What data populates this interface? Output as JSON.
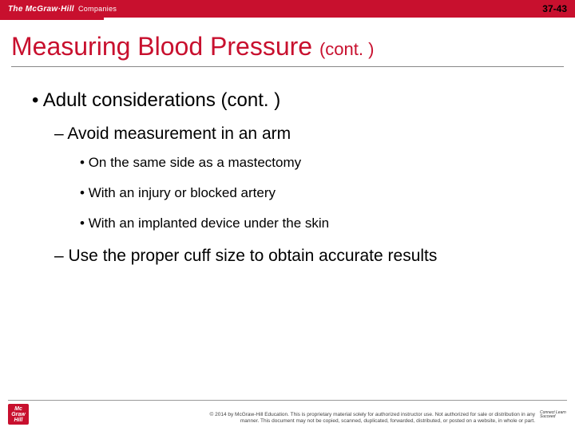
{
  "header": {
    "brand": "The McGraw·Hill",
    "brand_suffix": "Companies",
    "page_number": "37-43"
  },
  "title": {
    "main": "Measuring Blood Pressure",
    "suffix": "(cont. )"
  },
  "bullets": {
    "l1": "Adult considerations (cont. )",
    "l2a": "Avoid measurement in an arm",
    "l3a": "On the same side as a mastectomy",
    "l3b": "With an injury or blocked artery",
    "l3c": "With an implanted device under the skin",
    "l2b": "Use the proper cuff size to obtain accurate results"
  },
  "footer": {
    "logo_text": "Mc Graw Hill",
    "connect": "Connect Learn Succeed",
    "copyright": "© 2014 by McGraw-Hill Education. This is proprietary material solely for authorized instructor use. Not authorized for sale or distribution in any manner. This document may not be copied, scanned, duplicated, forwarded, distributed, or posted on a website, in whole or part."
  },
  "colors": {
    "brand_red": "#c8102e",
    "text": "#000000",
    "rule": "#888888",
    "background": "#ffffff"
  }
}
